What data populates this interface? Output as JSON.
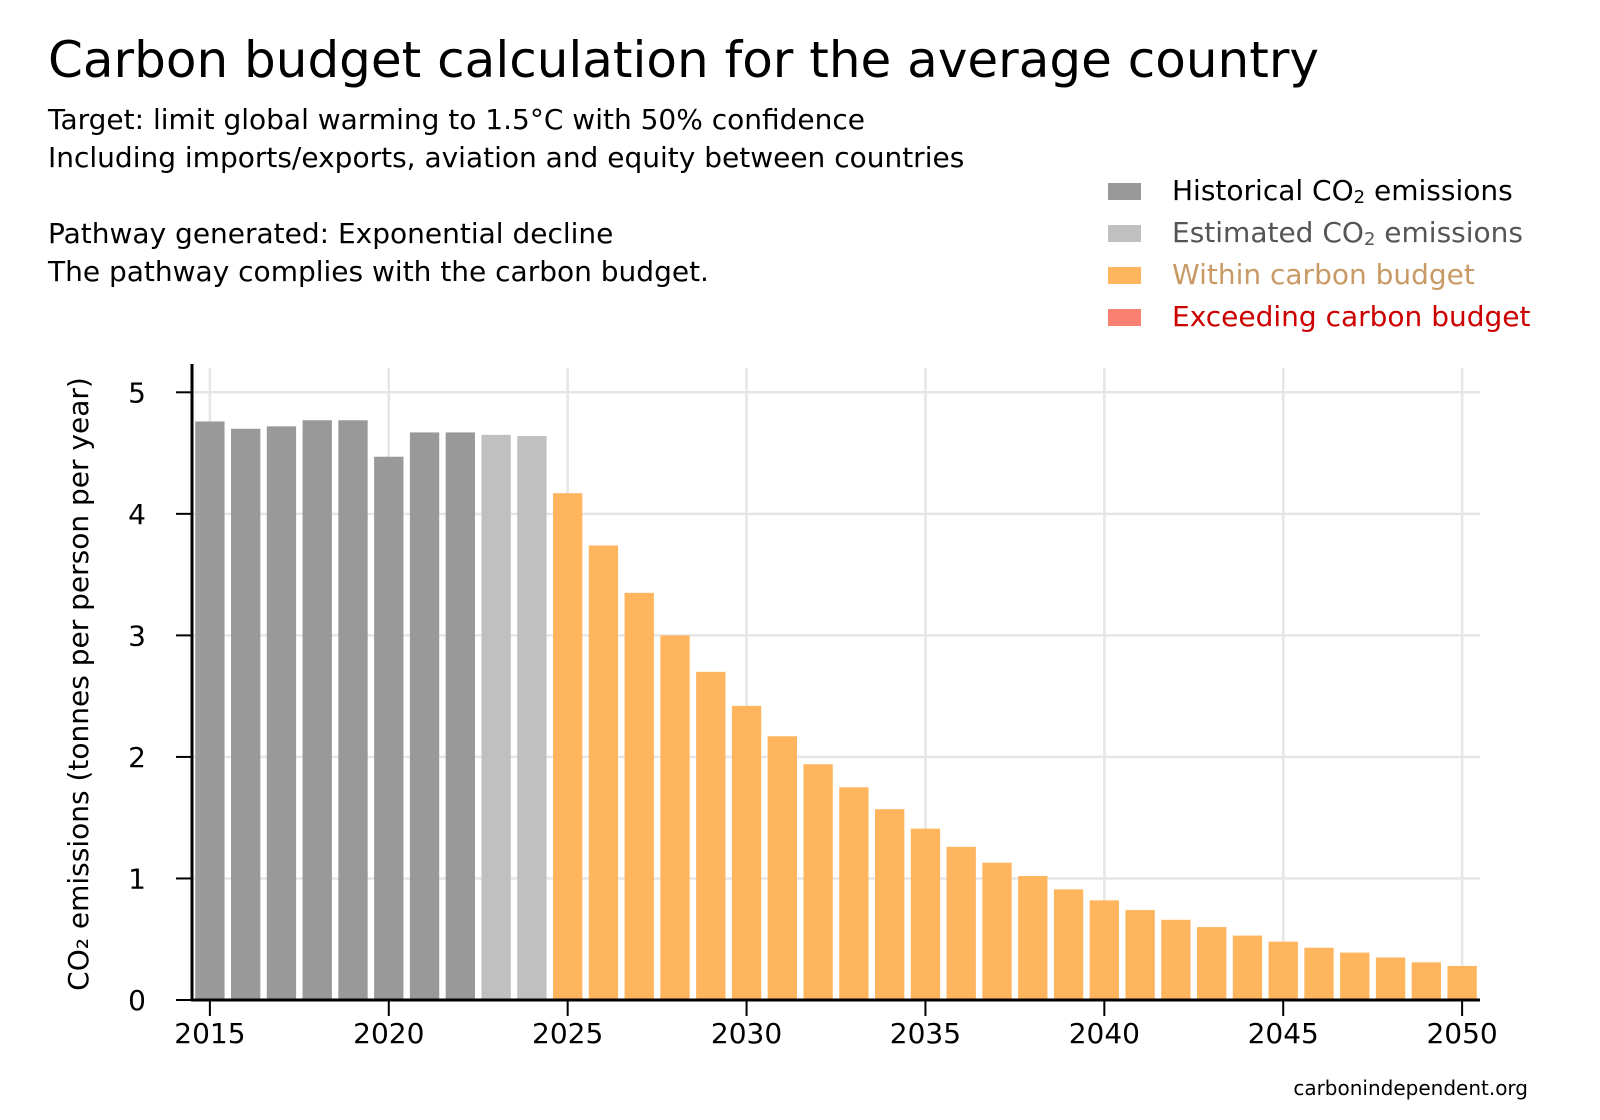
{
  "title": "Carbon budget calculation for the average country",
  "subtitle_lines": [
    "Target: limit global warming to 1.5°C with 50% confidence",
    "Including imports/exports, aviation and equity between countries",
    "Pathway generated: Exponential decline",
    "The pathway complies with the carbon budget."
  ],
  "legend": [
    {
      "pre": "Historical CO",
      "sub": "2",
      "post": " emissions",
      "swatch": "#999999",
      "text_color": "#000000"
    },
    {
      "pre": "Estimated CO",
      "sub": "2",
      "post": " emissions",
      "swatch": "#c0c0c0",
      "text_color": "#555555"
    },
    {
      "pre": "Within carbon budget",
      "sub": "",
      "post": "",
      "swatch": "#ffb55e",
      "text_color": "#c99a66"
    },
    {
      "pre": "Exceeding carbon budget",
      "sub": "",
      "post": "",
      "swatch": "#fa8072",
      "text_color": "#cc0000"
    }
  ],
  "source": "carbonindependent.org",
  "chart_data": {
    "type": "bar",
    "ylabel": "CO₂ emissions (tonnes per person per year)",
    "xlim": [
      2014.5,
      2050.5
    ],
    "ylim": [
      0,
      5.2
    ],
    "xticks": [
      "2015",
      "2020",
      "2025",
      "2030",
      "2035",
      "2040",
      "2045",
      "2050"
    ],
    "yticks": [
      "0",
      "1",
      "2",
      "3",
      "4",
      "5"
    ],
    "grid": true,
    "legend_position": "top-right",
    "series": [
      {
        "name": "Historical CO₂ emissions",
        "color": "#999999",
        "x": [
          2015,
          2016,
          2017,
          2018,
          2019,
          2020,
          2021,
          2022
        ],
        "values": [
          4.76,
          4.7,
          4.72,
          4.77,
          4.77,
          4.47,
          4.67,
          4.67
        ]
      },
      {
        "name": "Estimated CO₂ emissions",
        "color": "#c0c0c0",
        "x": [
          2023,
          2024
        ],
        "values": [
          4.65,
          4.64
        ]
      },
      {
        "name": "Within carbon budget",
        "color": "#ffb55e",
        "x": [
          2025,
          2026,
          2027,
          2028,
          2029,
          2030,
          2031,
          2032,
          2033,
          2034,
          2035,
          2036,
          2037,
          2038,
          2039,
          2040,
          2041,
          2042,
          2043,
          2044,
          2045,
          2046,
          2047,
          2048,
          2049,
          2050
        ],
        "values": [
          4.17,
          3.74,
          3.35,
          3.0,
          2.7,
          2.42,
          2.17,
          1.94,
          1.75,
          1.57,
          1.41,
          1.26,
          1.13,
          1.02,
          0.91,
          0.82,
          0.74,
          0.66,
          0.6,
          0.53,
          0.48,
          0.43,
          0.39,
          0.35,
          0.31,
          0.28
        ]
      },
      {
        "name": "Exceeding carbon budget",
        "color": "#fa8072",
        "x": [],
        "values": []
      }
    ]
  }
}
